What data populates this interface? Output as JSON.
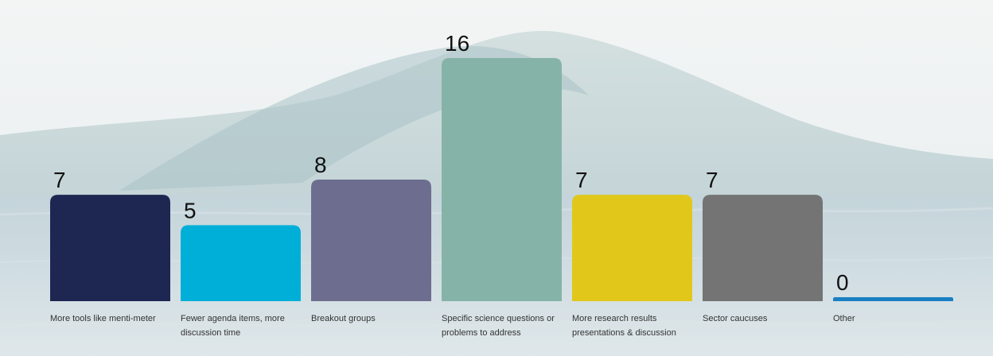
{
  "chart_data": {
    "type": "bar",
    "categories": [
      [
        "More tools like menti-meter"
      ],
      [
        "Fewer agenda items, more",
        "discussion time"
      ],
      [
        "Breakout groups"
      ],
      [
        "Specific science questions or",
        "problems to address"
      ],
      [
        "More research results",
        "presentations & discussion"
      ],
      [
        "Sector caucuses"
      ],
      [
        "Other"
      ]
    ],
    "values": [
      7,
      5,
      8,
      16,
      7,
      7,
      0
    ],
    "colors": [
      "#1e2752",
      "#00afd8",
      "#6d6e8f",
      "#86b3a8",
      "#e1c719",
      "#747474",
      "#1a7fc3"
    ],
    "ylim": [
      0,
      16
    ],
    "grid": false,
    "legend": "none"
  }
}
